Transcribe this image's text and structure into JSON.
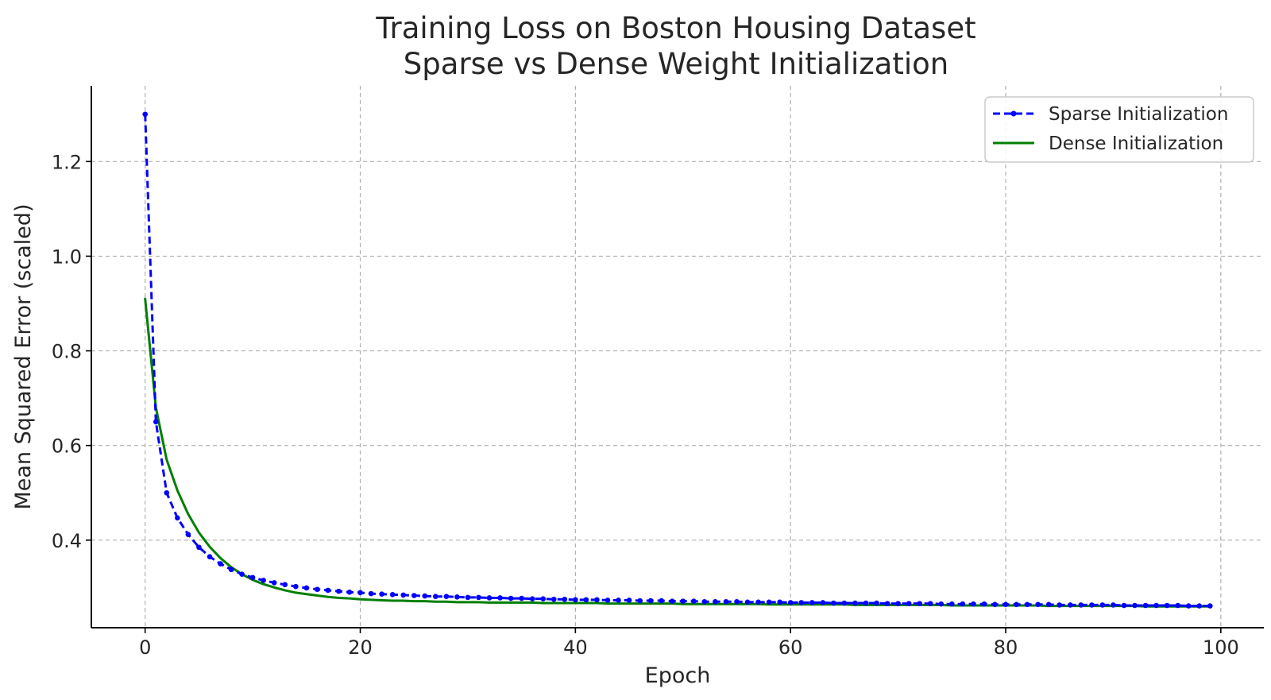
{
  "chart_data": {
    "type": "line",
    "title": [
      "Training Loss on Boston Housing Dataset",
      "Sparse vs Dense Weight Initialization"
    ],
    "xlabel": "Epoch",
    "ylabel": "Mean Squared Error (scaled)",
    "xlim": [
      -5,
      104
    ],
    "ylim": [
      0.215,
      1.36
    ],
    "xticks": [
      0,
      20,
      40,
      60,
      80,
      100
    ],
    "yticks": [
      0.4,
      0.6,
      0.8,
      1.0,
      1.2
    ],
    "ytick_labels": [
      "0.4",
      "0.6",
      "0.8",
      "1.0",
      "1.2"
    ],
    "grid": true,
    "legend_position": "top-right",
    "x": [
      0,
      1,
      2,
      3,
      4,
      5,
      6,
      7,
      8,
      9,
      10,
      11,
      12,
      13,
      14,
      15,
      16,
      17,
      18,
      19,
      20,
      21,
      22,
      23,
      24,
      25,
      26,
      27,
      28,
      29,
      30,
      31,
      32,
      33,
      34,
      35,
      36,
      37,
      38,
      39,
      40,
      41,
      42,
      43,
      44,
      45,
      46,
      47,
      48,
      49,
      50,
      51,
      52,
      53,
      54,
      55,
      56,
      57,
      58,
      59,
      60,
      61,
      62,
      63,
      64,
      65,
      66,
      67,
      68,
      69,
      70,
      71,
      72,
      73,
      74,
      75,
      76,
      77,
      78,
      79,
      80,
      81,
      82,
      83,
      84,
      85,
      86,
      87,
      88,
      89,
      90,
      91,
      92,
      93,
      94,
      95,
      96,
      97,
      98,
      99
    ],
    "series": [
      {
        "name": "Sparse Initialization",
        "color": "#0000ff",
        "style": "dashed-dots",
        "values": [
          1.3,
          0.65,
          0.5,
          0.447,
          0.412,
          0.385,
          0.365,
          0.35,
          0.338,
          0.328,
          0.321,
          0.315,
          0.31,
          0.306,
          0.302,
          0.299,
          0.296,
          0.294,
          0.292,
          0.29,
          0.289,
          0.287,
          0.286,
          0.285,
          0.284,
          0.283,
          0.282,
          0.281,
          0.281,
          0.28,
          0.279,
          0.279,
          0.278,
          0.278,
          0.277,
          0.277,
          0.276,
          0.276,
          0.275,
          0.275,
          0.274,
          0.274,
          0.274,
          0.273,
          0.273,
          0.273,
          0.272,
          0.272,
          0.272,
          0.271,
          0.271,
          0.271,
          0.27,
          0.27,
          0.27,
          0.27,
          0.269,
          0.269,
          0.269,
          0.269,
          0.268,
          0.268,
          0.268,
          0.268,
          0.267,
          0.267,
          0.267,
          0.267,
          0.267,
          0.266,
          0.266,
          0.266,
          0.266,
          0.266,
          0.265,
          0.265,
          0.265,
          0.265,
          0.265,
          0.264,
          0.264,
          0.264,
          0.264,
          0.264,
          0.264,
          0.263,
          0.263,
          0.263,
          0.263,
          0.263,
          0.263,
          0.262,
          0.262,
          0.262,
          0.262,
          0.262,
          0.262,
          0.261,
          0.261,
          0.261
        ]
      },
      {
        "name": "Dense Initialization",
        "color": "#007f00",
        "style": "solid",
        "values": [
          0.91,
          0.68,
          0.57,
          0.505,
          0.455,
          0.416,
          0.386,
          0.362,
          0.343,
          0.328,
          0.316,
          0.307,
          0.3,
          0.294,
          0.289,
          0.286,
          0.283,
          0.28,
          0.278,
          0.277,
          0.275,
          0.274,
          0.273,
          0.272,
          0.272,
          0.271,
          0.271,
          0.27,
          0.27,
          0.269,
          0.269,
          0.269,
          0.268,
          0.268,
          0.268,
          0.268,
          0.268,
          0.267,
          0.267,
          0.267,
          0.267,
          0.267,
          0.267,
          0.266,
          0.266,
          0.266,
          0.266,
          0.266,
          0.266,
          0.266,
          0.265,
          0.265,
          0.265,
          0.265,
          0.265,
          0.265,
          0.265,
          0.265,
          0.264,
          0.264,
          0.264,
          0.264,
          0.264,
          0.264,
          0.264,
          0.264,
          0.263,
          0.263,
          0.263,
          0.263,
          0.263,
          0.263,
          0.263,
          0.263,
          0.263,
          0.262,
          0.262,
          0.262,
          0.262,
          0.262,
          0.262,
          0.262,
          0.262,
          0.262,
          0.261,
          0.261,
          0.261,
          0.261,
          0.261,
          0.261,
          0.261,
          0.261,
          0.261,
          0.26,
          0.26,
          0.26,
          0.26,
          0.26,
          0.26,
          0.26
        ]
      }
    ]
  }
}
